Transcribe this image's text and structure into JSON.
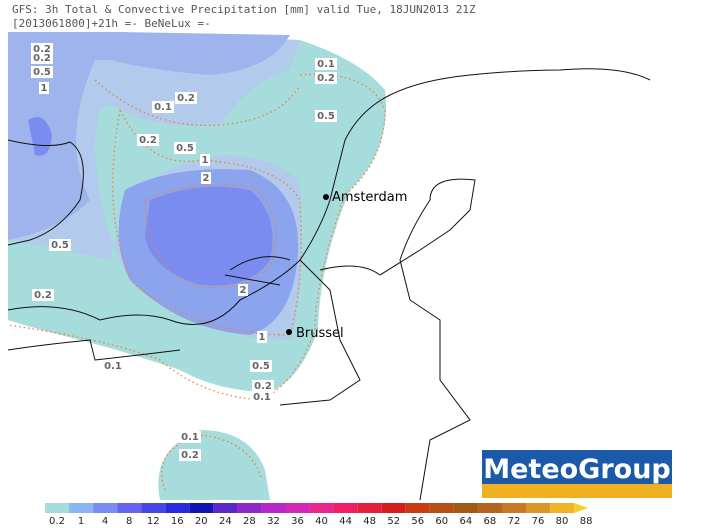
{
  "header": {
    "line1": "GFS: 3h Total & Convective Precipitation [mm] valid Tue, 18JUN2013 21Z",
    "line2": "[2013061800]+21h =- BeNeLux =-"
  },
  "cities": [
    "Amsterdam",
    "Brussel"
  ],
  "contour_labels": [
    "0.2",
    "0.2",
    "0.5",
    "1",
    "0.1",
    "0.2",
    "0.1",
    "0.2",
    "0.2",
    "0.5",
    "1",
    "2",
    "0.5",
    "0.5",
    "0.2",
    "2",
    "1",
    "0.1",
    "0.5",
    "0.2",
    "0.1",
    "0.1",
    "0.2"
  ],
  "legend": {
    "values": [
      0.2,
      1,
      4,
      8,
      12,
      16,
      20,
      24,
      28,
      32,
      36,
      40,
      44,
      48,
      52,
      56,
      60,
      64,
      68,
      72,
      76,
      80,
      88
    ],
    "colors": [
      "#a6dcdc",
      "#8cb4f0",
      "#7a8cf0",
      "#6464f0",
      "#4646e6",
      "#2828dc",
      "#1414b4",
      "#5a28c8",
      "#8c28c8",
      "#b428c8",
      "#d228b4",
      "#e6288c",
      "#f01e64",
      "#e61e3c",
      "#d21e1e",
      "#c83c14",
      "#b45014",
      "#a05a14",
      "#b4641e",
      "#c87828",
      "#dc9628",
      "#f0b428",
      "#f0d228"
    ]
  },
  "logo": "MeteoGroup"
}
